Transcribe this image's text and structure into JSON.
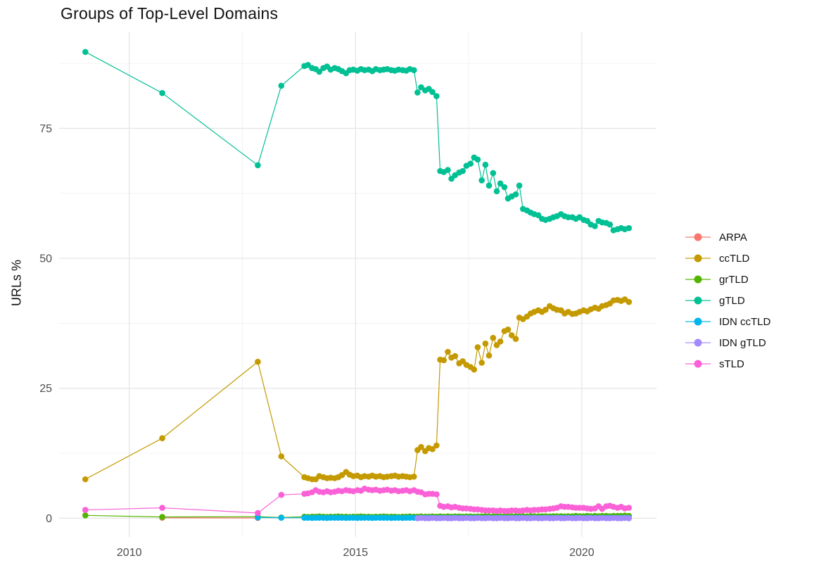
{
  "page": {
    "background": "#ffffff"
  },
  "chart_data": {
    "type": "line",
    "title": "Groups of Top-Level Domains",
    "xlabel": "",
    "ylabel": "URLs %",
    "grid": true,
    "legend_position": "right",
    "x_ticks": [
      "2010",
      "2015",
      "2020"
    ],
    "x_tick_values": [
      2010,
      2015,
      2020
    ],
    "x_minor_values": [
      2012.5,
      2017.5
    ],
    "y_ticks": [
      "0",
      "25",
      "50",
      "75"
    ],
    "y_tick_values": [
      0,
      25,
      50,
      75
    ],
    "y_minor_values": [
      12.5,
      37.5,
      62.5,
      87.5
    ],
    "xlim": [
      2008.45,
      2021.65
    ],
    "ylim": [
      -3.6,
      93.6
    ],
    "tick_label_color": "#4d4d4d",
    "major_grid_color": "#e4e4e4",
    "minor_grid_color": "#f1f1f1",
    "x_monthly": [
      2013.87,
      2013.95,
      2014.04,
      2014.12,
      2014.2,
      2014.29,
      2014.37,
      2014.45,
      2014.54,
      2014.62,
      2014.7,
      2014.79,
      2014.87,
      2014.95,
      2015.04,
      2015.12,
      2015.2,
      2015.29,
      2015.37,
      2015.45,
      2015.54,
      2015.62,
      2015.7,
      2015.79,
      2015.87,
      2015.95,
      2016.04,
      2016.12,
      2016.2,
      2016.29,
      2016.37,
      2016.45,
      2016.54,
      2016.62,
      2016.7,
      2016.79,
      2016.87,
      2016.95,
      2017.04,
      2017.12,
      2017.2,
      2017.29,
      2017.37,
      2017.45,
      2017.54,
      2017.62,
      2017.7,
      2017.79,
      2017.87,
      2017.95,
      2018.04,
      2018.12,
      2018.2,
      2018.29,
      2018.37,
      2018.45,
      2018.54,
      2018.62,
      2018.7,
      2018.79,
      2018.87,
      2018.95,
      2019.04,
      2019.12,
      2019.2,
      2019.29,
      2019.37,
      2019.45,
      2019.54,
      2019.62,
      2019.7,
      2019.79,
      2019.87,
      2019.95,
      2020.04,
      2020.12,
      2020.2,
      2020.29,
      2020.37,
      2020.45,
      2020.54,
      2020.62,
      2020.7,
      2020.79,
      2020.87,
      2020.95,
      2021.04
    ],
    "series": [
      {
        "name": "ARPA",
        "color": "#F8766D",
        "head_x": [
          2010.73,
          2012.84
        ],
        "head_y": [
          0.1,
          0.05
        ]
      },
      {
        "name": "ccTLD",
        "color": "#C49A00",
        "head_x": [
          2009.03,
          2010.73,
          2012.84,
          2013.36
        ],
        "head_y": [
          7.5,
          15.4,
          30.1,
          11.9
        ],
        "monthly_y": [
          7.9,
          7.7,
          7.5,
          7.5,
          8.1,
          7.9,
          7.7,
          7.8,
          7.7,
          7.9,
          8.3,
          8.9,
          8.4,
          8.1,
          8.2,
          7.9,
          8.1,
          8.0,
          8.2,
          8.0,
          8.1,
          7.9,
          8.0,
          8.1,
          8.2,
          8.0,
          8.1,
          8.0,
          7.9,
          8.0,
          13.1,
          13.7,
          12.9,
          13.5,
          13.3,
          14.0,
          30.5,
          30.4,
          32.0,
          30.9,
          31.2,
          29.8,
          30.2,
          29.5,
          29.1,
          28.6,
          32.9,
          29.9,
          33.6,
          31.3,
          34.7,
          33.3,
          34.0,
          36.0,
          36.3,
          35.2,
          34.5,
          38.6,
          38.3,
          38.8,
          39.4,
          39.7,
          40.0,
          39.7,
          40.1,
          40.8,
          40.4,
          40.1,
          40.0,
          39.4,
          39.7,
          39.3,
          39.4,
          39.7,
          40.0,
          39.8,
          40.2,
          40.5,
          40.3,
          40.8,
          41.0,
          41.3,
          41.9,
          42.0,
          41.8,
          42.1,
          41.6
        ]
      },
      {
        "name": "grTLD",
        "color": "#53B400",
        "head_x": [
          2009.03,
          2010.73,
          2012.84,
          2013.36
        ],
        "head_y": [
          0.55,
          0.25,
          0.3,
          0.15
        ],
        "monthly_y": [
          0.3,
          0.25,
          0.3,
          0.3,
          0.35,
          0.3,
          0.25,
          0.3,
          0.3,
          0.35,
          0.3,
          0.3,
          0.25,
          0.3,
          0.3,
          0.35,
          0.3,
          0.3,
          0.25,
          0.3,
          0.3,
          0.35,
          0.3,
          0.3,
          0.3,
          0.25,
          0.3,
          0.3,
          0.35,
          0.3,
          0.3,
          0.35,
          0.3,
          0.3,
          0.35,
          0.3,
          0.35,
          0.3,
          0.35,
          0.3,
          0.35,
          0.35,
          0.3,
          0.35,
          0.35,
          0.3,
          0.35,
          0.35,
          0.4,
          0.35,
          0.35,
          0.4,
          0.35,
          0.35,
          0.4,
          0.35,
          0.4,
          0.35,
          0.4,
          0.35,
          0.4,
          0.4,
          0.35,
          0.4,
          0.4,
          0.35,
          0.4,
          0.4,
          0.4,
          0.35,
          0.4,
          0.4,
          0.45,
          0.4,
          0.4,
          0.45,
          0.4,
          0.45,
          0.4,
          0.45,
          0.45,
          0.4,
          0.45,
          0.45,
          0.45,
          0.5,
          0.45
        ]
      },
      {
        "name": "gTLD",
        "color": "#00C094",
        "head_x": [
          2009.03,
          2010.73,
          2012.84,
          2013.36
        ],
        "head_y": [
          89.7,
          81.8,
          67.9,
          83.2
        ],
        "monthly_y": [
          87.0,
          87.2,
          86.6,
          86.4,
          85.9,
          86.6,
          86.9,
          86.3,
          86.6,
          86.4,
          86.0,
          85.6,
          86.2,
          86.3,
          86.1,
          86.4,
          86.2,
          86.3,
          86.0,
          86.4,
          86.2,
          86.3,
          86.4,
          86.2,
          86.1,
          86.3,
          86.2,
          86.1,
          86.4,
          86.2,
          81.9,
          82.9,
          82.3,
          82.6,
          82.0,
          81.2,
          66.8,
          66.6,
          67.0,
          65.3,
          66.0,
          66.5,
          66.8,
          67.8,
          68.2,
          69.4,
          69.0,
          65.0,
          68.0,
          64.0,
          66.4,
          62.9,
          64.4,
          63.7,
          61.5,
          61.9,
          62.3,
          64.0,
          59.5,
          59.2,
          58.8,
          58.5,
          58.3,
          57.6,
          57.4,
          57.6,
          57.9,
          58.1,
          58.5,
          58.1,
          57.9,
          57.9,
          57.6,
          57.9,
          57.4,
          57.2,
          56.5,
          56.2,
          57.2,
          56.9,
          56.8,
          56.5,
          55.4,
          55.6,
          55.8,
          55.6,
          55.8
        ]
      },
      {
        "name": "IDN ccTLD",
        "color": "#00B6EB",
        "head_x": [
          2012.84,
          2013.36
        ],
        "head_y": [
          0.15,
          0.1
        ],
        "monthly_y": [
          0.1,
          0.1,
          0.05,
          0.1,
          0.1,
          0.1,
          0.05,
          0.1,
          0.1,
          0.1,
          0.1,
          0.05,
          0.1,
          0.1,
          0.05,
          0.1,
          0.1,
          0.1,
          0.05,
          0.1,
          0.1,
          0.1,
          0.1,
          0.05,
          0.1,
          0.1,
          0.05,
          0.1,
          0.1,
          0.1,
          0.05,
          0.1,
          0.1,
          0.1,
          0.1,
          0.05,
          0.1,
          0.1,
          0.05,
          0.1,
          0.1,
          0.1,
          0.05,
          0.1,
          0.1,
          0.1,
          0.1,
          0.05,
          0.1,
          0.1,
          0.05,
          0.1,
          0.1,
          0.1,
          0.05,
          0.1,
          0.1,
          0.1,
          0.1,
          0.05,
          0.1,
          0.1,
          0.05,
          0.1,
          0.1,
          0.1,
          0.05,
          0.1,
          0.1,
          0.1,
          0.1,
          0.05,
          0.1,
          0.1,
          0.05,
          0.1,
          0.1,
          0.1,
          0.05,
          0.1,
          0.1,
          0.1,
          0.1,
          0.05,
          0.1,
          0.1,
          0.1
        ]
      },
      {
        "name": "IDN gTLD",
        "color": "#A58AFF",
        "monthly_start_index": 30,
        "monthly_y": [
          0.0,
          0.05,
          0.0,
          0.0,
          0.05,
          0.0,
          0.0,
          0.05,
          0.0,
          0.0,
          0.05,
          0.0,
          0.0,
          0.05,
          0.0,
          0.0,
          0.05,
          0.0,
          0.0,
          0.05,
          0.0,
          0.0,
          0.05,
          0.0,
          0.0,
          0.05,
          0.0,
          0.0,
          0.05,
          0.0,
          0.0,
          0.05,
          0.0,
          0.0,
          0.05,
          0.0,
          0.0,
          0.05,
          0.0,
          0.0,
          0.05,
          0.0,
          0.0,
          0.05,
          0.0,
          0.0,
          0.05,
          0.0,
          0.0,
          0.05,
          0.0,
          0.0,
          0.05,
          0.0,
          0.0,
          0.05,
          0.0
        ]
      },
      {
        "name": "sTLD",
        "color": "#FB61D7",
        "head_x": [
          2009.03,
          2010.73,
          2012.84,
          2013.36
        ],
        "head_y": [
          1.6,
          2.0,
          1.0,
          4.5
        ],
        "monthly_y": [
          4.7,
          4.8,
          5.0,
          5.4,
          5.1,
          5.0,
          5.2,
          5.0,
          5.1,
          5.3,
          5.2,
          5.4,
          5.3,
          5.2,
          5.4,
          5.3,
          5.7,
          5.5,
          5.4,
          5.5,
          5.3,
          5.4,
          5.5,
          5.3,
          5.4,
          5.2,
          5.3,
          5.4,
          5.2,
          5.4,
          5.1,
          5.0,
          4.6,
          4.7,
          4.7,
          4.6,
          2.4,
          2.2,
          2.3,
          2.1,
          2.2,
          2.0,
          1.9,
          1.9,
          1.8,
          1.7,
          1.7,
          1.6,
          1.5,
          1.5,
          1.5,
          1.4,
          1.5,
          1.4,
          1.4,
          1.5,
          1.5,
          1.4,
          1.5,
          1.6,
          1.5,
          1.6,
          1.6,
          1.7,
          1.7,
          1.8,
          1.9,
          2.0,
          2.3,
          2.2,
          2.2,
          2.1,
          2.0,
          2.0,
          2.0,
          1.9,
          1.8,
          1.9,
          2.3,
          1.8,
          2.3,
          2.4,
          2.2,
          2.0,
          2.2,
          1.9,
          2.0
        ]
      }
    ]
  }
}
